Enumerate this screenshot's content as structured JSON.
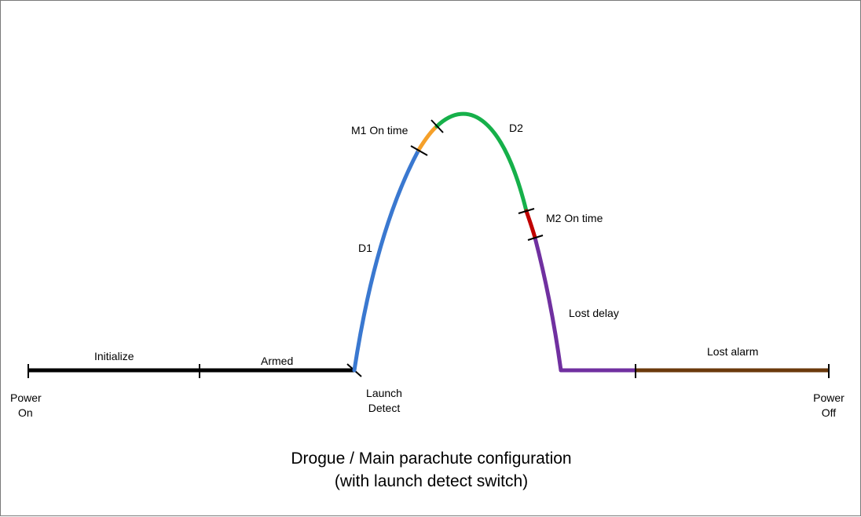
{
  "diagram": {
    "caption_line1": "Drogue / Main parachute configuration",
    "caption_line2": "(with launch detect switch)",
    "labels": {
      "initialize": "Initialize",
      "armed": "Armed",
      "power_on_1": "Power",
      "power_on_2": "On",
      "launch_1": "Launch",
      "launch_2": "Detect",
      "d1": "D1",
      "m1": "M1 On time",
      "d2": "D2",
      "m2": "M2 On time",
      "lost_delay": "Lost delay",
      "lost_alarm": "Lost alarm",
      "power_off_1": "Power",
      "power_off_2": "Off"
    },
    "colors": {
      "ground": "#000000",
      "d1": "#3a78d0",
      "m1": "#f5a02a",
      "d2": "#16b04a",
      "m2": "#c00000",
      "lost_delay": "#7030a0",
      "lost_alarm": "#6b3a0c"
    }
  }
}
